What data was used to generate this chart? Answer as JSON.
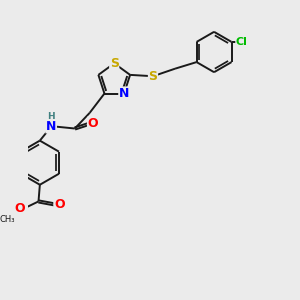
{
  "background_color": "#ebebeb",
  "bond_color": "#1a1a1a",
  "atom_colors": {
    "S": "#c8a800",
    "N": "#0000ff",
    "O": "#ff0000",
    "Cl": "#00bb00",
    "C": "#1a1a1a",
    "H": "#408080"
  },
  "lw": 1.4,
  "fs": 7.5
}
